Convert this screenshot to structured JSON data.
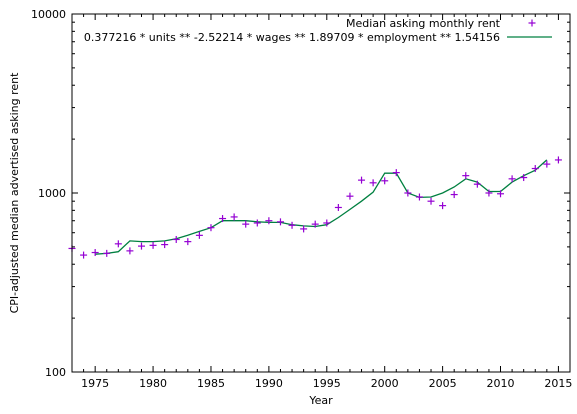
{
  "chart_data": {
    "type": "scatter",
    "title": "",
    "xlabel": "Year",
    "ylabel": "CPI-adjusted median advertised asking rent",
    "xlim": [
      1973,
      2016
    ],
    "ylim": [
      100,
      10000
    ],
    "yscale": "log",
    "grid": false,
    "legend_position": "top-right",
    "x_ticks": [
      1975,
      1980,
      1985,
      1990,
      1995,
      2000,
      2005,
      2010,
      2015
    ],
    "y_ticks": [
      100,
      1000,
      10000
    ],
    "series": [
      {
        "name": "Median asking monthly rent",
        "kind": "points",
        "marker": "+",
        "color": "#9400d3",
        "x": [
          1973,
          1974,
          1975,
          1976,
          1977,
          1978,
          1979,
          1980,
          1981,
          1982,
          1983,
          1984,
          1985,
          1986,
          1987,
          1988,
          1989,
          1990,
          1991,
          1992,
          1993,
          1994,
          1995,
          1996,
          1997,
          1998,
          1999,
          2000,
          2001,
          2002,
          2003,
          2004,
          2005,
          2006,
          2007,
          2008,
          2009,
          2010,
          2011,
          2012,
          2013,
          2014,
          2015
        ],
        "y": [
          490,
          450,
          465,
          460,
          520,
          475,
          505,
          510,
          515,
          550,
          535,
          580,
          640,
          720,
          735,
          670,
          680,
          700,
          690,
          660,
          630,
          670,
          680,
          830,
          960,
          1180,
          1140,
          1170,
          1300,
          1000,
          950,
          900,
          850,
          980,
          1250,
          1120,
          1000,
          990,
          1200,
          1220,
          1370,
          1450,
          1530
        ]
      },
      {
        "name": "0.377216 * units ** -2.52214 * wages ** 1.89709 * employment ** 1.54156",
        "kind": "line",
        "color": "#008040",
        "x": [
          1975,
          1976,
          1977,
          1978,
          1979,
          1980,
          1981,
          1982,
          1983,
          1984,
          1985,
          1986,
          1987,
          1988,
          1989,
          1990,
          1991,
          1992,
          1993,
          1994,
          1995,
          1996,
          1997,
          1998,
          1999,
          2000,
          2001,
          2002,
          2003,
          2004,
          2005,
          2006,
          2007,
          2008,
          2009,
          2010,
          2011,
          2012,
          2013,
          2014
        ],
        "y": [
          455,
          460,
          470,
          540,
          535,
          535,
          540,
          555,
          580,
          610,
          640,
          700,
          700,
          700,
          690,
          685,
          685,
          665,
          655,
          650,
          665,
          730,
          810,
          900,
          1010,
          1290,
          1290,
          1000,
          945,
          950,
          1000,
          1080,
          1200,
          1150,
          1020,
          1020,
          1150,
          1250,
          1340,
          1530
        ]
      }
    ]
  }
}
